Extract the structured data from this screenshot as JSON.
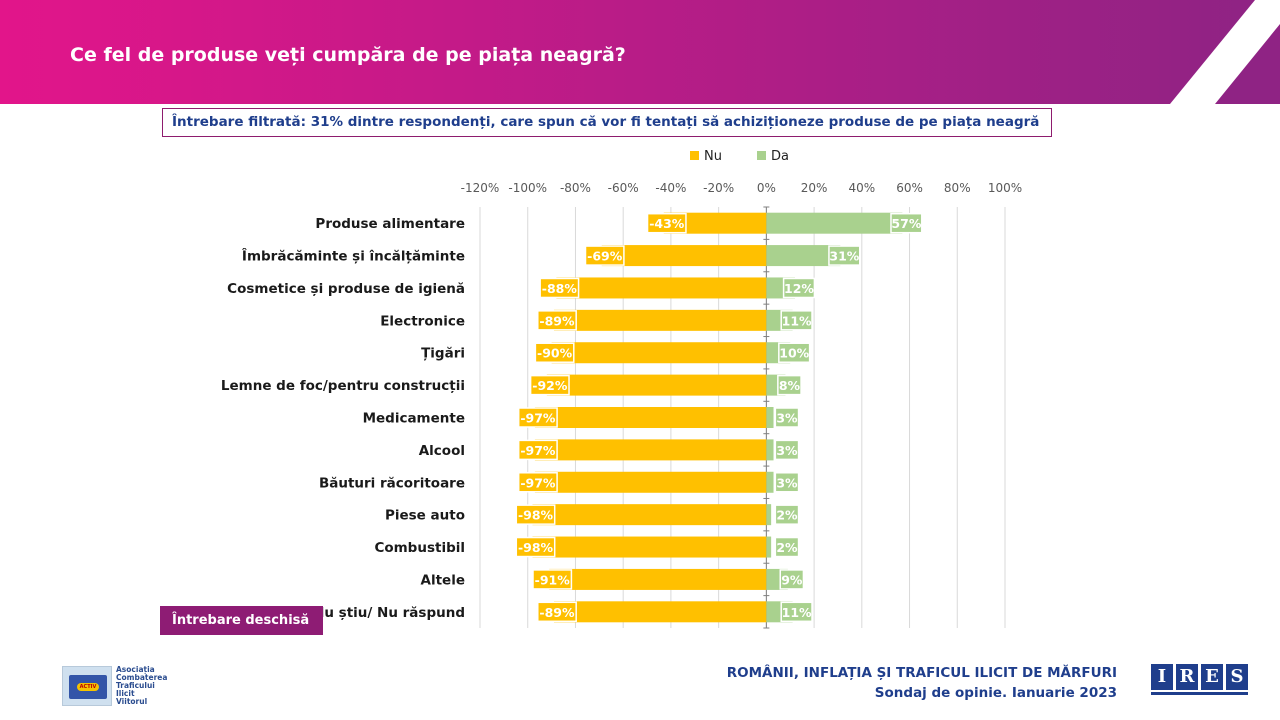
{
  "title": "Ce fel de produse veți cumpăra de pe piața neagră?",
  "filter_note": "Întrebare filtrată: 31% dintre respondenți, care spun că vor fi tentați să achiziționeze produse de pe piața neagră",
  "badge": "Întrebare deschisă",
  "footer": {
    "line1": "ROMÂNII, INFLAȚIA ȘI TRAFICUL ILICIT DE MĂRFURI",
    "line2": "Sondaj de opinie. Ianuarie 2023"
  },
  "logos": {
    "activ_lines": [
      "Asociația",
      "Combaterea",
      "Traficului",
      "Ilicit",
      "Viitorul"
    ],
    "activ_mark": "ACTIV",
    "ires_letters": [
      "I",
      "R",
      "E",
      "S"
    ]
  },
  "colors": {
    "header_magenta": "#e2158a",
    "header_purple": "#8f2384",
    "nu": "#ffc000",
    "da": "#a9d18e",
    "accent_text": "#1f3e8c"
  },
  "chart_data": {
    "type": "bar",
    "orientation": "horizontal-diverging",
    "categories": [
      "Produse alimentare",
      "Îmbrăcăminte și încălțăminte",
      "Cosmetice și produse de igienă",
      "Electronice",
      "Țigări",
      "Lemne de foc/pentru construcții",
      "Medicamente",
      "Alcool",
      "Băuturi răcoritoare",
      "Piese auto",
      "Combustibil",
      "Altele",
      "Nu știu/ Nu răspund"
    ],
    "series": [
      {
        "name": "Nu",
        "values": [
          -43,
          -69,
          -88,
          -89,
          -90,
          -92,
          -97,
          -97,
          -97,
          -98,
          -98,
          -91,
          -89
        ],
        "color": "#ffc000"
      },
      {
        "name": "Da",
        "values": [
          57,
          31,
          12,
          11,
          10,
          8,
          3,
          3,
          3,
          2,
          2,
          9,
          11
        ],
        "color": "#a9d18e"
      }
    ],
    "xlim": [
      -120,
      100
    ],
    "x_ticks": [
      "-120%",
      "-100%",
      "-80%",
      "-60%",
      "-40%",
      "-20%",
      "0%",
      "20%",
      "40%",
      "60%",
      "80%",
      "100%"
    ],
    "tick_values": [
      -120,
      -100,
      -80,
      -60,
      -40,
      -20,
      0,
      20,
      40,
      60,
      80,
      100
    ],
    "grid": true,
    "legend_position": "top",
    "data_labels": {
      "Nu": [
        "-43%",
        "-69%",
        "-88%",
        "-89%",
        "-90%",
        "-92%",
        "-97%",
        "-97%",
        "-97%",
        "-98%",
        "-98%",
        "-91%",
        "-89%"
      ],
      "Da": [
        "57%",
        "31%",
        "12%",
        "11%",
        "10%",
        "8%",
        "3%",
        "3%",
        "3%",
        "2%",
        "2%",
        "9%",
        "11%"
      ]
    }
  }
}
